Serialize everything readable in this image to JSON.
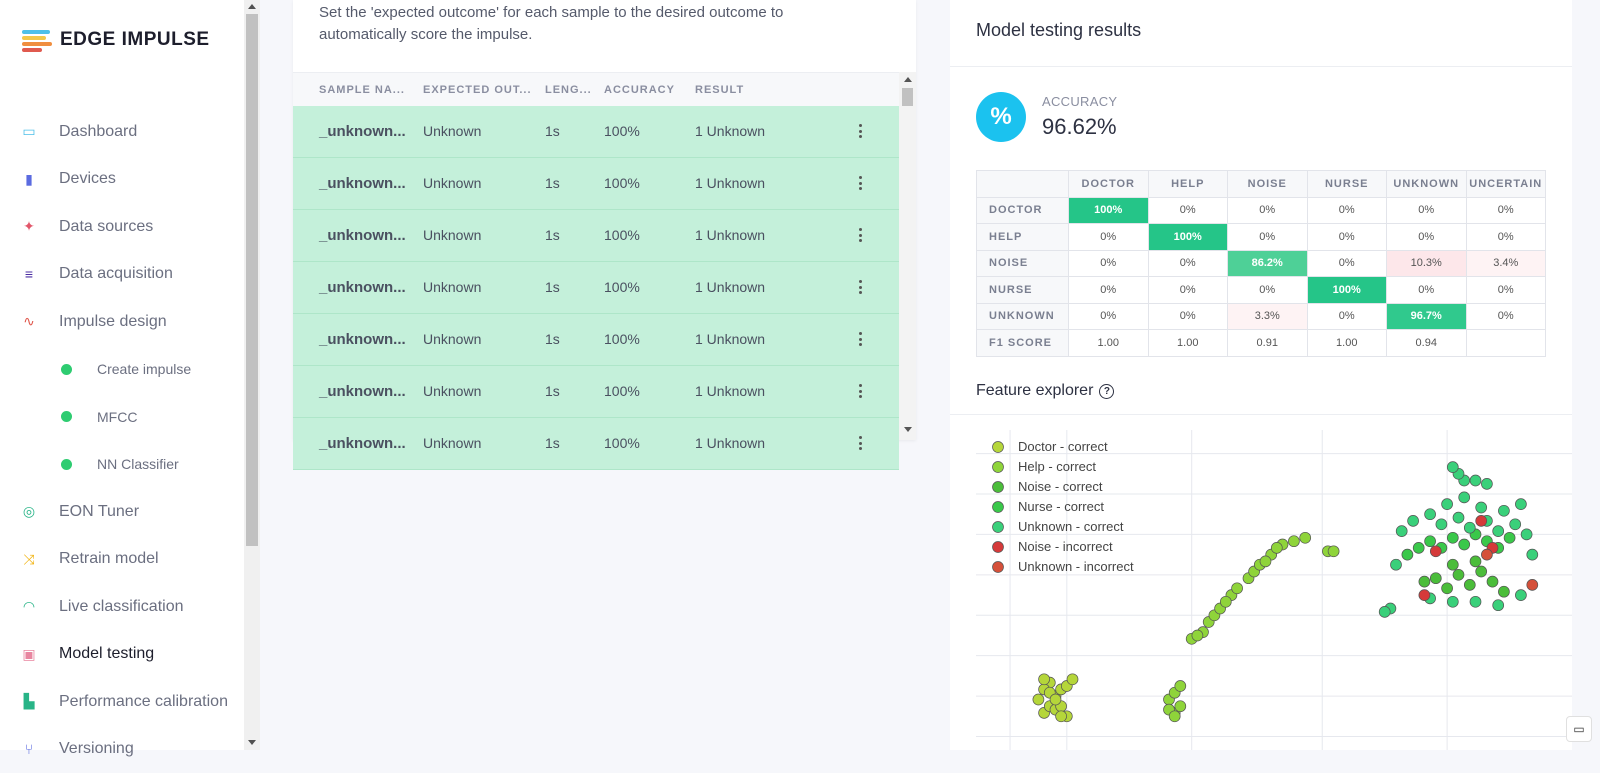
{
  "brand": {
    "name": "EDGE IMPULSE"
  },
  "nav": [
    {
      "label": "Dashboard",
      "icon": "monitor-icon",
      "color": "#4ec0e9",
      "sub": false
    },
    {
      "label": "Devices",
      "icon": "chip-icon",
      "color": "#5b6be0",
      "sub": false
    },
    {
      "label": "Data sources",
      "icon": "magic-wand-icon",
      "color": "#e2566a",
      "sub": false
    },
    {
      "label": "Data acquisition",
      "icon": "database-icon",
      "color": "#4b2ea3",
      "sub": false
    },
    {
      "label": "Impulse design",
      "icon": "pulse-icon",
      "color": "#e05a4f",
      "sub": false
    },
    {
      "label": "Create impulse",
      "icon": "dot-icon",
      "color": "#2ecc71",
      "sub": true
    },
    {
      "label": "MFCC",
      "icon": "dot-icon",
      "color": "#2ecc71",
      "sub": true
    },
    {
      "label": "NN Classifier",
      "icon": "dot-icon",
      "color": "#2ecc71",
      "sub": true
    },
    {
      "label": "EON Tuner",
      "icon": "compass-icon",
      "color": "#28b487",
      "sub": false
    },
    {
      "label": "Retrain model",
      "icon": "shuffle-icon",
      "color": "#f2b619",
      "sub": false
    },
    {
      "label": "Live classification",
      "icon": "signal-icon",
      "color": "#28b487",
      "sub": false
    },
    {
      "label": "Model testing",
      "icon": "clipboard-check-icon",
      "color": "#e886a0",
      "sub": false,
      "active": true
    },
    {
      "label": "Performance calibration",
      "icon": "factory-icon",
      "color": "#28b487",
      "sub": false
    },
    {
      "label": "Versioning",
      "icon": "git-branch-icon",
      "color": "#5b6be0",
      "sub": false
    }
  ],
  "testing": {
    "description": "Set the 'expected outcome' for each sample to the desired outcome to automatically score the impulse.",
    "headers": [
      "SAMPLE NA...",
      "EXPECTED OUT...",
      "LENG...",
      "ACCURACY",
      "RESULT"
    ],
    "rows": [
      {
        "name": "_unknown...",
        "expected": "Unknown",
        "length": "1s",
        "accuracy": "100%",
        "result": "1 Unknown"
      },
      {
        "name": "_unknown...",
        "expected": "Unknown",
        "length": "1s",
        "accuracy": "100%",
        "result": "1 Unknown"
      },
      {
        "name": "_unknown...",
        "expected": "Unknown",
        "length": "1s",
        "accuracy": "100%",
        "result": "1 Unknown"
      },
      {
        "name": "_unknown...",
        "expected": "Unknown",
        "length": "1s",
        "accuracy": "100%",
        "result": "1 Unknown"
      },
      {
        "name": "_unknown...",
        "expected": "Unknown",
        "length": "1s",
        "accuracy": "100%",
        "result": "1 Unknown"
      },
      {
        "name": "_unknown...",
        "expected": "Unknown",
        "length": "1s",
        "accuracy": "100%",
        "result": "1 Unknown"
      },
      {
        "name": "_unknown...",
        "expected": "Unknown",
        "length": "1s",
        "accuracy": "100%",
        "result": "1 Unknown"
      }
    ]
  },
  "results": {
    "title": "Model testing results",
    "accuracy_label": "ACCURACY",
    "accuracy_value": "96.62%",
    "accuracy_symbol": "%",
    "matrix_cols": [
      "DOCTOR",
      "HELP",
      "NOISE",
      "NURSE",
      "UNKNOWN",
      "UNCERTAIN"
    ],
    "matrix_rows": [
      {
        "label": "DOCTOR",
        "cells": [
          "100%",
          "0%",
          "0%",
          "0%",
          "0%",
          "0%"
        ]
      },
      {
        "label": "HELP",
        "cells": [
          "0%",
          "100%",
          "0%",
          "0%",
          "0%",
          "0%"
        ]
      },
      {
        "label": "NOISE",
        "cells": [
          "0%",
          "0%",
          "86.2%",
          "0%",
          "10.3%",
          "3.4%"
        ]
      },
      {
        "label": "NURSE",
        "cells": [
          "0%",
          "0%",
          "0%",
          "100%",
          "0%",
          "0%"
        ]
      },
      {
        "label": "UNKNOWN",
        "cells": [
          "0%",
          "0%",
          "3.3%",
          "0%",
          "96.7%",
          "0%"
        ]
      },
      {
        "label": "F1 SCORE",
        "cells": [
          "1.00",
          "1.00",
          "0.91",
          "1.00",
          "0.94",
          ""
        ]
      }
    ],
    "feature_explorer_title": "Feature explorer",
    "legend": [
      {
        "name": "Doctor - correct",
        "color": "#b5d63a"
      },
      {
        "name": "Help - correct",
        "color": "#8fd43a"
      },
      {
        "name": "Noise - correct",
        "color": "#4bbd3a"
      },
      {
        "name": "Nurse - correct",
        "color": "#3ac84a"
      },
      {
        "name": "Unknown - correct",
        "color": "#3ad07a"
      },
      {
        "name": "Noise - incorrect",
        "color": "#d53a3a"
      },
      {
        "name": "Unknown - incorrect",
        "color": "#d5503a"
      }
    ]
  },
  "chart_data": {
    "type": "scatter",
    "title": "",
    "xlabel": "",
    "ylabel": "",
    "grid": true,
    "legend_position": "top-left",
    "series": [
      {
        "name": "Doctor - correct",
        "points": [
          [
            1.2,
            1.1
          ],
          [
            1.3,
            1.3
          ],
          [
            1.1,
            1.5
          ],
          [
            1.4,
            1.6
          ],
          [
            1.5,
            1.8
          ],
          [
            1.6,
            1.9
          ],
          [
            1.3,
            2.0
          ],
          [
            1.2,
            1.8
          ],
          [
            1.4,
            1.2
          ],
          [
            1.6,
            1.0
          ],
          [
            1.5,
            1.3
          ],
          [
            1.3,
            1.7
          ],
          [
            1.7,
            2.1
          ],
          [
            1.2,
            2.1
          ],
          [
            1.5,
            1.0
          ],
          [
            1.4,
            1.5
          ]
        ]
      },
      {
        "name": "Help - correct",
        "points": [
          [
            3.5,
            1.1
          ],
          [
            3.6,
            1.3
          ],
          [
            3.4,
            1.5
          ],
          [
            3.5,
            1.7
          ],
          [
            3.6,
            1.9
          ],
          [
            3.4,
            1.2
          ],
          [
            3.5,
            1.0
          ],
          [
            4.0,
            3.5
          ],
          [
            4.1,
            3.8
          ],
          [
            4.2,
            4.0
          ],
          [
            4.3,
            4.2
          ],
          [
            4.5,
            4.6
          ],
          [
            4.8,
            5.1
          ],
          [
            4.9,
            5.3
          ],
          [
            5.0,
            5.5
          ],
          [
            5.2,
            5.8
          ],
          [
            5.4,
            6.1
          ],
          [
            5.6,
            6.2
          ],
          [
            5.8,
            6.3
          ],
          [
            6.2,
            5.9
          ],
          [
            6.3,
            5.9
          ],
          [
            3.8,
            3.3
          ],
          [
            3.9,
            3.4
          ],
          [
            4.6,
            4.8
          ],
          [
            4.4,
            4.4
          ],
          [
            5.3,
            6.0
          ],
          [
            5.1,
            5.6
          ]
        ]
      },
      {
        "name": "Noise - correct",
        "points": [
          [
            7.9,
            5.0
          ],
          [
            8.1,
            5.1
          ],
          [
            8.3,
            4.8
          ],
          [
            8.5,
            5.2
          ],
          [
            8.7,
            4.9
          ],
          [
            8.9,
            5.3
          ],
          [
            9.1,
            5.0
          ],
          [
            9.3,
            4.7
          ],
          [
            8.4,
            5.5
          ],
          [
            8.8,
            5.6
          ]
        ]
      },
      {
        "name": "Nurse - correct",
        "points": [
          [
            7.6,
            5.8
          ],
          [
            7.8,
            6.0
          ],
          [
            8.0,
            6.2
          ],
          [
            8.2,
            6.0
          ],
          [
            8.4,
            6.3
          ],
          [
            8.6,
            6.1
          ],
          [
            8.8,
            6.4
          ],
          [
            9.0,
            6.2
          ],
          [
            9.2,
            6.0
          ],
          [
            9.4,
            6.3
          ]
        ]
      },
      {
        "name": "Unknown - correct",
        "points": [
          [
            7.5,
            6.5
          ],
          [
            7.7,
            6.8
          ],
          [
            8.0,
            7.0
          ],
          [
            8.2,
            6.7
          ],
          [
            8.5,
            6.9
          ],
          [
            8.7,
            6.6
          ],
          [
            9.0,
            6.8
          ],
          [
            9.2,
            6.5
          ],
          [
            9.5,
            6.7
          ],
          [
            9.7,
            6.4
          ],
          [
            8.3,
            7.3
          ],
          [
            8.6,
            7.5
          ],
          [
            8.9,
            7.2
          ],
          [
            9.3,
            7.1
          ],
          [
            9.6,
            7.3
          ],
          [
            7.4,
            5.5
          ],
          [
            7.3,
            4.2
          ],
          [
            7.2,
            4.1
          ],
          [
            8.0,
            4.5
          ],
          [
            8.4,
            4.4
          ],
          [
            8.8,
            4.4
          ],
          [
            9.2,
            4.3
          ],
          [
            9.6,
            4.6
          ],
          [
            9.8,
            5.8
          ],
          [
            8.6,
            8.0
          ],
          [
            8.5,
            8.2
          ],
          [
            8.4,
            8.4
          ],
          [
            8.8,
            8.0
          ],
          [
            9.0,
            7.9
          ]
        ]
      },
      {
        "name": "Noise - incorrect",
        "points": [
          [
            8.1,
            5.9
          ],
          [
            8.9,
            6.8
          ],
          [
            9.1,
            6.0
          ],
          [
            7.9,
            4.6
          ]
        ]
      },
      {
        "name": "Unknown - incorrect",
        "points": [
          [
            9.8,
            4.9
          ],
          [
            9.0,
            5.8
          ]
        ]
      }
    ]
  }
}
